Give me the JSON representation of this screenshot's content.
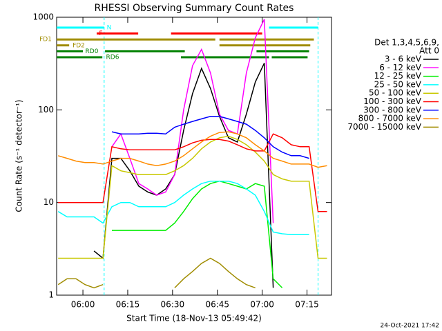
{
  "chart_data": {
    "type": "line",
    "title": "RHESSI Observing Summary Count Rates",
    "x_label": "Start Time (18-Nov-13 05:49:42)",
    "y_label": "Count Rate (s⁻¹ detector⁻¹)",
    "legend_title": [
      "Det 1,3,4,5,6,9,",
      "Att 0"
    ],
    "footer": "24-Oct-2021 17:42",
    "log_y": true,
    "xlim": [
      1.5,
      93.5
    ],
    "ylim": [
      1,
      1000
    ],
    "xticks": [
      {
        "value": 10.3,
        "label": "06:00"
      },
      {
        "value": 25.3,
        "label": "06:15"
      },
      {
        "value": 40.3,
        "label": "06:30"
      },
      {
        "value": 55.3,
        "label": "06:45"
      },
      {
        "value": 70.3,
        "label": "07:00"
      },
      {
        "value": 85.3,
        "label": "07:15"
      }
    ],
    "yticks": [
      1,
      10,
      100,
      1000
    ],
    "x": [
      2,
      5,
      8,
      11,
      14,
      17,
      20,
      23,
      26,
      29,
      32,
      35,
      38,
      41,
      44,
      47,
      50,
      53,
      56,
      59,
      62,
      65,
      68,
      71,
      74,
      77,
      80,
      83,
      86,
      89,
      92
    ],
    "series": [
      {
        "name": "3 - 6 keV",
        "color": "#000000",
        "values": [
          null,
          null,
          null,
          null,
          3,
          2.5,
          30,
          30,
          22,
          15,
          13,
          12,
          14,
          20,
          60,
          150,
          280,
          170,
          85,
          50,
          45,
          90,
          200,
          320,
          1.2,
          null,
          null,
          null,
          null,
          null,
          null
        ]
      },
      {
        "name": "6 - 12 keV",
        "color": "#ff00ff",
        "values": [
          null,
          null,
          null,
          null,
          null,
          null,
          40,
          55,
          30,
          16,
          14,
          12,
          13,
          20,
          100,
          300,
          450,
          250,
          90,
          60,
          55,
          250,
          600,
          950,
          6,
          null,
          null,
          null,
          null,
          null,
          null
        ]
      },
      {
        "name": "12 - 25 keV",
        "color": "#00ee00",
        "values": [
          null,
          null,
          null,
          null,
          null,
          null,
          5,
          5,
          5,
          5,
          5,
          5,
          5,
          6,
          8,
          11,
          14,
          16,
          17,
          16,
          15,
          14,
          16,
          15,
          1.5,
          1.2,
          null,
          null,
          null,
          null,
          null
        ]
      },
      {
        "name": "25 - 50 keV",
        "color": "#00ffff",
        "values": [
          8,
          7,
          7,
          7,
          7,
          6,
          9,
          10,
          10,
          9,
          9,
          9,
          9,
          10,
          12,
          14,
          16,
          17,
          17,
          17,
          16,
          14,
          12,
          8,
          4.8,
          4.6,
          4.5,
          4.5,
          4.5,
          null,
          null
        ]
      },
      {
        "name": "50 - 100 keV",
        "color": "#c8c800",
        "values": [
          2.5,
          2.5,
          2.5,
          2.5,
          2.5,
          2.5,
          25,
          22,
          21,
          20,
          20,
          20,
          20,
          22,
          25,
          30,
          38,
          45,
          50,
          52,
          48,
          42,
          35,
          28,
          20,
          18,
          17,
          17,
          17,
          2.5,
          2.5
        ]
      },
      {
        "name": "100 - 300 keV",
        "color": "#ff0000",
        "values": [
          10,
          10,
          10,
          10,
          10,
          10,
          40,
          38,
          37,
          37,
          37,
          37,
          37,
          37,
          40,
          44,
          47,
          48,
          48,
          46,
          42,
          38,
          36,
          36,
          55,
          50,
          42,
          40,
          40,
          8,
          8
        ]
      },
      {
        "name": "300 - 800 keV",
        "color": "#0000ff",
        "values": [
          null,
          null,
          null,
          null,
          null,
          null,
          58,
          55,
          55,
          55,
          56,
          56,
          55,
          65,
          70,
          75,
          80,
          85,
          85,
          80,
          75,
          70,
          60,
          50,
          40,
          35,
          32,
          32,
          30,
          null,
          null
        ]
      },
      {
        "name": "800 - 7000 keV",
        "color": "#ff8c00",
        "values": [
          32,
          30,
          28,
          27,
          27,
          26,
          28,
          30,
          30,
          28,
          26,
          25,
          26,
          28,
          32,
          38,
          45,
          52,
          57,
          58,
          55,
          50,
          42,
          36,
          30,
          28,
          26,
          26,
          26,
          24,
          25
        ]
      },
      {
        "name": "7000 - 15000 keV",
        "color": "#a08c00",
        "values": [
          1.3,
          1.5,
          1.5,
          1.3,
          1.2,
          1.3,
          null,
          null,
          null,
          null,
          null,
          null,
          null,
          1.2,
          1.5,
          1.8,
          2.2,
          2.5,
          2.2,
          1.8,
          1.5,
          1.3,
          1.2,
          null,
          null,
          null,
          null,
          null,
          null,
          null,
          null
        ]
      }
    ],
    "flags": [
      {
        "label": "N",
        "color": "#00ffff",
        "segments": [
          [
            1.5,
            17.4
          ],
          [
            72.6,
            89
          ]
        ]
      },
      {
        "label": "F",
        "color": "#ff0000",
        "segments": [
          [
            14.9,
            28.8
          ],
          [
            39.8,
            70.3
          ]
        ]
      },
      {
        "label": "FD1",
        "color": "#a08c00",
        "segments": [
          [
            1.5,
            54.6
          ],
          [
            56,
            87.6
          ]
        ]
      },
      {
        "label": "FD2",
        "color": "#a08c00",
        "segments": [
          [
            1.5,
            5.7
          ],
          [
            56,
            86.4
          ]
        ]
      },
      {
        "label": "RD0",
        "color": "#008000",
        "segments": [
          [
            1.5,
            10.3
          ],
          [
            17.7,
            44.4
          ],
          [
            68.4,
            86
          ]
        ]
      },
      {
        "label": "RD6",
        "color": "#008000",
        "segments": [
          [
            1.5,
            16.8
          ],
          [
            43.1,
            72.6
          ],
          [
            73.5,
            85.5
          ]
        ]
      }
    ],
    "night_marks": [
      17.4,
      89
    ]
  }
}
